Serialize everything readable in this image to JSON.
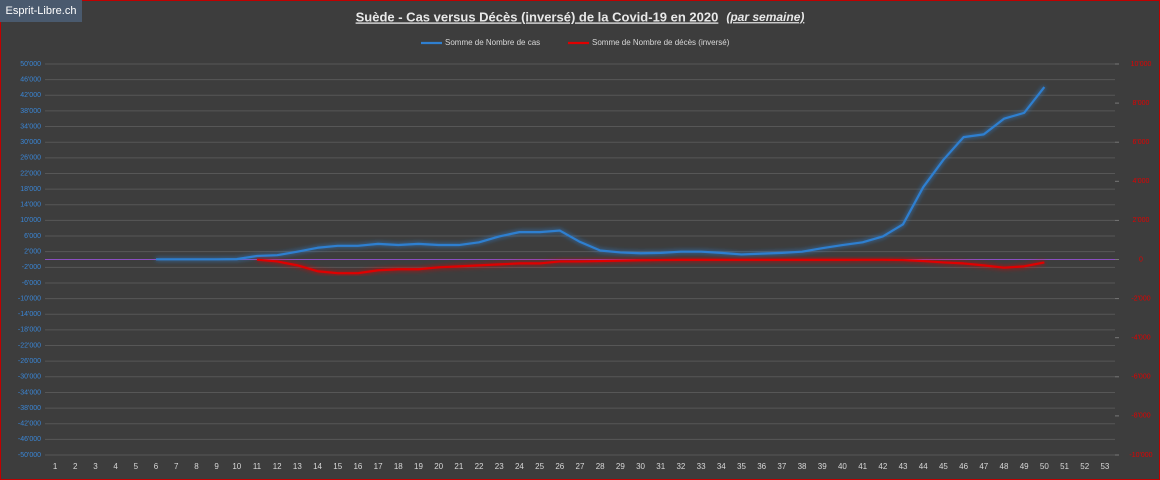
{
  "chart_data": {
    "type": "line",
    "watermark": "Esprit-Libre.ch",
    "title": "Suède - Cas versus Décès (inversé) de la Covid-19 en 2020",
    "subtitle": "(par semaine)",
    "categories": [
      "1",
      "2",
      "3",
      "4",
      "5",
      "6",
      "7",
      "8",
      "9",
      "10",
      "11",
      "12",
      "13",
      "14",
      "15",
      "16",
      "17",
      "18",
      "19",
      "20",
      "21",
      "22",
      "23",
      "24",
      "25",
      "26",
      "27",
      "28",
      "29",
      "30",
      "31",
      "32",
      "33",
      "34",
      "35",
      "36",
      "37",
      "38",
      "39",
      "40",
      "41",
      "42",
      "43",
      "44",
      "45",
      "46",
      "47",
      "48",
      "49",
      "50",
      "51",
      "52",
      "53"
    ],
    "series": [
      {
        "name": "Somme de Nombre de cas",
        "color": "#2f7fd0",
        "values": [
          null,
          null,
          null,
          null,
          null,
          50,
          50,
          50,
          50,
          100,
          900,
          1100,
          2000,
          3000,
          3500,
          3500,
          4000,
          3700,
          4000,
          3700,
          3700,
          4400,
          5900,
          7000,
          7000,
          7400,
          4500,
          2300,
          1800,
          1600,
          1700,
          2000,
          2000,
          1700,
          1300,
          1500,
          1700,
          2000,
          2900,
          3700,
          4400,
          5900,
          9000,
          18500,
          25500,
          31300,
          32000,
          36000,
          37500,
          44100,
          null,
          null,
          null
        ]
      },
      {
        "name": "Somme de Nombre de décès (inversé)",
        "color": "#e00000",
        "axis": "y2",
        "values": [
          null,
          null,
          null,
          null,
          null,
          null,
          null,
          null,
          null,
          null,
          -10,
          -100,
          -300,
          -600,
          -700,
          -700,
          -550,
          -500,
          -500,
          -400,
          -350,
          -300,
          -250,
          -200,
          -200,
          -100,
          -100,
          -80,
          -60,
          -40,
          -30,
          -20,
          -20,
          -20,
          -20,
          -20,
          -20,
          -20,
          -20,
          -20,
          -15,
          -15,
          -30,
          -80,
          -150,
          -200,
          -300,
          -420,
          -350,
          -150,
          null,
          null,
          null
        ]
      }
    ],
    "ylim": [
      -50000,
      50000
    ],
    "yticks": [
      {
        "value": 50000,
        "label": "50'000"
      },
      {
        "value": 46000,
        "label": "46'000"
      },
      {
        "value": 42000,
        "label": "42'000"
      },
      {
        "value": 38000,
        "label": "38'000"
      },
      {
        "value": 34000,
        "label": "34'000"
      },
      {
        "value": 30000,
        "label": "30'000"
      },
      {
        "value": 26000,
        "label": "26'000"
      },
      {
        "value": 22000,
        "label": "22'000"
      },
      {
        "value": 18000,
        "label": "18'000"
      },
      {
        "value": 14000,
        "label": "14'000"
      },
      {
        "value": 10000,
        "label": "10'000"
      },
      {
        "value": 6000,
        "label": "6'000"
      },
      {
        "value": 2000,
        "label": "2'000"
      },
      {
        "value": -2000,
        "label": "-2'000"
      },
      {
        "value": -6000,
        "label": "-6'000"
      },
      {
        "value": -10000,
        "label": "-10'000"
      },
      {
        "value": -14000,
        "label": "-14'000"
      },
      {
        "value": -18000,
        "label": "-18'000"
      },
      {
        "value": -22000,
        "label": "-22'000"
      },
      {
        "value": -26000,
        "label": "-26'000"
      },
      {
        "value": -30000,
        "label": "-30'000"
      },
      {
        "value": -34000,
        "label": "-34'000"
      },
      {
        "value": -38000,
        "label": "-38'000"
      },
      {
        "value": -42000,
        "label": "-42'000"
      },
      {
        "value": -46000,
        "label": "-46'000"
      },
      {
        "value": -50000,
        "label": "-50'000"
      }
    ],
    "y2lim": [
      -10000,
      10000
    ],
    "y2ticks": [
      {
        "value": 10000,
        "label": "10'000"
      },
      {
        "value": 8000,
        "label": "8'000"
      },
      {
        "value": 6000,
        "label": "6'000"
      },
      {
        "value": 4000,
        "label": "4'000"
      },
      {
        "value": 2000,
        "label": "2'000"
      },
      0,
      {
        "value": -2000,
        "label": "-2'000"
      },
      {
        "value": -4000,
        "label": "-4'000"
      },
      {
        "value": -6000,
        "label": "-6'000"
      },
      {
        "value": -8000,
        "label": "-8'000"
      },
      {
        "value": -10000,
        "label": "-10'000"
      }
    ],
    "grid": true
  }
}
